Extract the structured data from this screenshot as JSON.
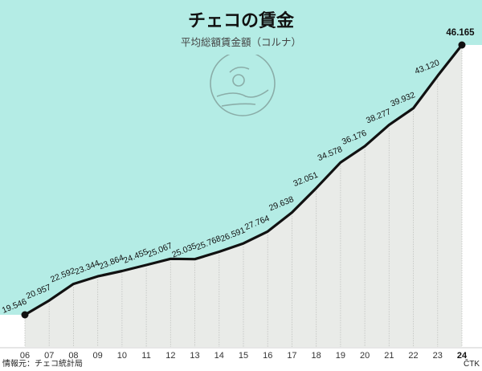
{
  "chart_data": {
    "type": "area",
    "title": "チェコの賃金",
    "subtitle": "平均総額賃金額（コルナ）",
    "categories": [
      "06",
      "07",
      "08",
      "09",
      "10",
      "11",
      "12",
      "13",
      "14",
      "15",
      "16",
      "17",
      "18",
      "19",
      "20",
      "21",
      "22",
      "23",
      "24"
    ],
    "series": [
      {
        "values": [
          19546,
          20957,
          22592,
          23344,
          23864,
          24455,
          25067,
          25035,
          25768,
          26591,
          27764,
          29638,
          32051,
          34578,
          36176,
          38277,
          39932,
          43120,
          46165
        ],
        "labels": [
          "19.546",
          "20.957",
          "22.592",
          "23.344",
          "23.864",
          "24.455",
          "25.067",
          "25.035",
          "25.768",
          "26.591",
          "27.764",
          "29.638",
          "32.051",
          "34.578",
          "36.176",
          "38.277",
          "39.932",
          "43.120",
          "46.165"
        ]
      }
    ],
    "grid": "vertical",
    "colors": {
      "background": "#b4ece5",
      "area": "#e9ebe8",
      "line": "#111111",
      "grid": "#c4c6c3"
    },
    "source": "情報元：チェコ統計局",
    "credit": "ČTK",
    "logo": "hand-coin-logo"
  }
}
